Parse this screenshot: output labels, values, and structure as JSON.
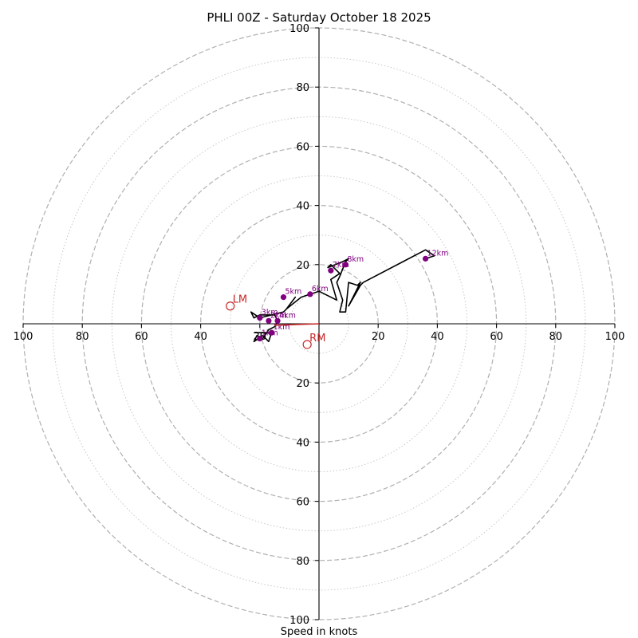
{
  "chart_data": {
    "type": "hodograph",
    "title": "PHLI 00Z - Saturday October 18 2025",
    "xlabel": "Speed in knots",
    "range": [
      -100,
      100
    ],
    "major_rings": [
      20,
      40,
      60,
      80,
      100
    ],
    "minor_rings": [
      10,
      30,
      50,
      70,
      90
    ],
    "x_tick_labels": [
      "100",
      "80",
      "60",
      "40",
      "20",
      "20",
      "40",
      "60",
      "80",
      "100"
    ],
    "x_tick_values": [
      -100,
      -80,
      -60,
      -40,
      -20,
      20,
      40,
      60,
      80,
      100
    ],
    "y_tick_labels": [
      "100",
      "80",
      "60",
      "40",
      "20",
      "20",
      "40",
      "60",
      "80",
      "100"
    ],
    "y_tick_values": [
      100,
      80,
      60,
      40,
      20,
      -20,
      -40,
      -60,
      -80,
      -100
    ],
    "colors": {
      "trace": "#000000",
      "height_marker": "#800080",
      "storm_motion": "#c8282a",
      "grid": "#b0b0b0",
      "axes": "#000000"
    },
    "wind_trace": [
      [
        -22,
        -3
      ],
      [
        -16,
        -3
      ],
      [
        -17,
        -6
      ],
      [
        -19,
        -4
      ],
      [
        -22,
        -6
      ],
      [
        -21,
        -4
      ],
      [
        -19,
        -5
      ],
      [
        -17,
        -2
      ],
      [
        -15,
        -1
      ],
      [
        -14,
        1
      ],
      [
        -15,
        3
      ],
      [
        -18,
        3
      ],
      [
        -20,
        3
      ],
      [
        -22,
        2
      ],
      [
        -23,
        4
      ],
      [
        -20,
        2
      ],
      [
        -16,
        3
      ],
      [
        -12,
        4
      ],
      [
        -11,
        5
      ],
      [
        -8,
        9
      ],
      [
        -11,
        5
      ],
      [
        -6,
        9
      ],
      [
        -3,
        10
      ],
      [
        0,
        11
      ],
      [
        6,
        8
      ],
      [
        4,
        15
      ],
      [
        7,
        17
      ],
      [
        4,
        20
      ],
      [
        3,
        19
      ],
      [
        8,
        21
      ],
      [
        10,
        22
      ],
      [
        9,
        21
      ],
      [
        7,
        16
      ],
      [
        6,
        14
      ],
      [
        8,
        8
      ],
      [
        7,
        4
      ],
      [
        9,
        4
      ],
      [
        10,
        14
      ],
      [
        13,
        13
      ],
      [
        14,
        14
      ],
      [
        10,
        6
      ],
      [
        14,
        13
      ],
      [
        15,
        14
      ],
      [
        36,
        25
      ],
      [
        39,
        23
      ],
      [
        36,
        22
      ]
    ],
    "height_markers": [
      {
        "label": "1km",
        "u": -16,
        "v": -3
      },
      {
        "label": "1km",
        "u": -20,
        "v": -5
      },
      {
        "label": "2km",
        "u": -17,
        "v": 1
      },
      {
        "label": "3km",
        "u": -20,
        "v": 2
      },
      {
        "label": "4km",
        "u": -14,
        "v": 1
      },
      {
        "label": "5km",
        "u": -12,
        "v": 9
      },
      {
        "label": "6km",
        "u": -3,
        "v": 10
      },
      {
        "label": "7km",
        "u": 4,
        "v": 18
      },
      {
        "label": "8km",
        "u": 9,
        "v": 20
      },
      {
        "label": "12km",
        "u": 36,
        "v": 22
      }
    ],
    "storm_motion": {
      "bunkers_left": {
        "label": "LM",
        "u": -30,
        "v": 6
      },
      "bunkers_right": {
        "label": "RM",
        "u": -4,
        "v": -7
      },
      "mean_wind_vector": {
        "u_start": 0,
        "v_start": 0,
        "u_end": -15,
        "v_end": -0.5
      }
    }
  }
}
